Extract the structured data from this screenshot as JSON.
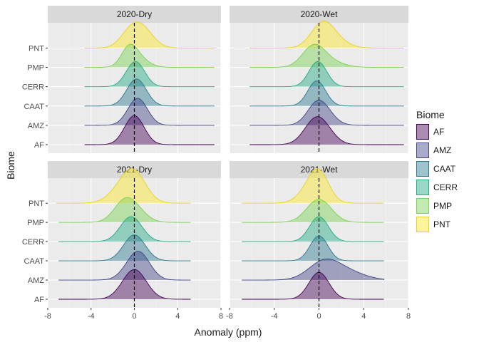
{
  "chart_data": {
    "type": "ridgeline-density",
    "xlabel": "Anomaly (ppm)",
    "ylabel": "Biome",
    "xlim": [
      -8,
      8
    ],
    "x_ticks": [
      -8,
      -4,
      0,
      4,
      8
    ],
    "reference_line_x": 0,
    "legend": {
      "title": "Biome",
      "position": "right"
    },
    "categories": [
      "AF",
      "AMZ",
      "CAAT",
      "CERR",
      "PMP",
      "PNT"
    ],
    "colors": {
      "AF": {
        "fill": "#440154",
        "line": "#440154"
      },
      "AMZ": {
        "fill": "#414487",
        "line": "#414487"
      },
      "CAAT": {
        "fill": "#2A788E",
        "line": "#2A788E"
      },
      "CERR": {
        "fill": "#22A884",
        "line": "#22A884"
      },
      "PMP": {
        "fill": "#7AD151",
        "line": "#7AD151"
      },
      "PNT": {
        "fill": "#FDE725",
        "line": "#E8D21A"
      }
    },
    "fill_alpha": 0.45,
    "panels": [
      {
        "title": "2020-Dry",
        "ridges": [
          {
            "biome": "AF",
            "range": [
              -4.6,
              7.4
            ],
            "height": 1.5,
            "components": [
              [
                0.0,
                0.9,
                1.0
              ]
            ]
          },
          {
            "biome": "AMZ",
            "range": [
              -4.6,
              7.4
            ],
            "height": 1.4,
            "components": [
              [
                0.3,
                0.9,
                1.0
              ]
            ]
          },
          {
            "biome": "CAAT",
            "range": [
              -4.6,
              7.4
            ],
            "height": 1.4,
            "components": [
              [
                0.2,
                0.9,
                1.0
              ]
            ]
          },
          {
            "biome": "CERR",
            "range": [
              -4.6,
              7.4
            ],
            "height": 1.3,
            "components": [
              [
                0.1,
                0.85,
                1.0
              ]
            ]
          },
          {
            "biome": "PMP",
            "range": [
              -4.6,
              7.4
            ],
            "height": 1.2,
            "components": [
              [
                -0.5,
                0.7,
                0.8
              ],
              [
                0.2,
                1.0,
                0.55
              ]
            ]
          },
          {
            "biome": "PNT",
            "range": [
              -4.6,
              7.4
            ],
            "height": 1.35,
            "components": [
              [
                0.5,
                1.1,
                1.0
              ],
              [
                -0.6,
                0.9,
                0.3
              ]
            ]
          }
        ]
      },
      {
        "title": "2020-Wet",
        "ridges": [
          {
            "biome": "AF",
            "range": [
              -6.2,
              7.6
            ],
            "height": 1.45,
            "components": [
              [
                -0.4,
                1.0,
                1.0
              ],
              [
                0.5,
                1.0,
                0.5
              ]
            ]
          },
          {
            "biome": "AMZ",
            "range": [
              -6.2,
              7.6
            ],
            "height": 1.3,
            "components": [
              [
                -0.2,
                0.9,
                0.9
              ],
              [
                0.4,
                1.0,
                0.6
              ]
            ]
          },
          {
            "biome": "CAAT",
            "range": [
              -6.2,
              7.6
            ],
            "height": 1.3,
            "components": [
              [
                -0.2,
                0.8,
                1.0
              ]
            ]
          },
          {
            "biome": "CERR",
            "range": [
              -6.2,
              7.6
            ],
            "height": 1.3,
            "components": [
              [
                -0.1,
                0.8,
                1.0
              ]
            ]
          },
          {
            "biome": "PMP",
            "range": [
              -6.2,
              7.6
            ],
            "height": 1.2,
            "components": [
              [
                -0.5,
                1.0,
                1.0
              ],
              [
                0.8,
                1.3,
                0.3
              ]
            ]
          },
          {
            "biome": "PNT",
            "range": [
              -6.2,
              7.6
            ],
            "height": 1.4,
            "components": [
              [
                0.3,
                1.0,
                1.0
              ],
              [
                1.0,
                1.3,
                0.5
              ]
            ]
          }
        ]
      },
      {
        "title": "2021-Dry",
        "ridges": [
          {
            "biome": "AF",
            "range": [
              -7.0,
              5.2
            ],
            "height": 1.55,
            "components": [
              [
                0.0,
                1.1,
                1.0
              ]
            ]
          },
          {
            "biome": "AMZ",
            "range": [
              -7.0,
              5.2
            ],
            "height": 1.5,
            "components": [
              [
                0.5,
                1.0,
                1.0
              ],
              [
                -0.3,
                1.0,
                0.3
              ]
            ]
          },
          {
            "biome": "CAAT",
            "range": [
              -7.0,
              5.2
            ],
            "height": 1.35,
            "components": [
              [
                0.0,
                1.0,
                1.0
              ]
            ]
          },
          {
            "biome": "CERR",
            "range": [
              -7.0,
              5.2
            ],
            "height": 1.3,
            "components": [
              [
                -0.3,
                1.0,
                1.0
              ]
            ]
          },
          {
            "biome": "PMP",
            "range": [
              -7.0,
              5.2
            ],
            "height": 1.3,
            "components": [
              [
                -0.9,
                1.0,
                1.0
              ],
              [
                0.3,
                1.0,
                0.4
              ]
            ]
          },
          {
            "biome": "PNT",
            "range": [
              -7.2,
              5.2
            ],
            "height": 1.8,
            "components": [
              [
                0.0,
                1.1,
                1.0
              ],
              [
                -1.2,
                1.2,
                0.4
              ]
            ]
          }
        ]
      },
      {
        "title": "2021-Wet",
        "ridges": [
          {
            "biome": "AF",
            "range": [
              -6.9,
              5.8
            ],
            "height": 1.4,
            "components": [
              [
                0.0,
                0.9,
                1.0
              ]
            ]
          },
          {
            "biome": "AMZ",
            "range": [
              -6.9,
              5.8
            ],
            "height": 1.1,
            "components": [
              [
                0.5,
                1.4,
                1.0
              ],
              [
                2.8,
                1.5,
                0.35
              ]
            ]
          },
          {
            "biome": "CAAT",
            "range": [
              -6.9,
              5.8
            ],
            "height": 1.3,
            "components": [
              [
                0.0,
                0.8,
                1.0
              ]
            ]
          },
          {
            "biome": "CERR",
            "range": [
              -6.9,
              5.8
            ],
            "height": 1.3,
            "components": [
              [
                0.0,
                0.85,
                1.0
              ]
            ]
          },
          {
            "biome": "PMP",
            "range": [
              -6.9,
              5.8
            ],
            "height": 1.2,
            "components": [
              [
                0.0,
                1.1,
                1.0
              ]
            ]
          },
          {
            "biome": "PNT",
            "range": [
              -6.9,
              5.8
            ],
            "height": 1.8,
            "components": [
              [
                0.0,
                0.9,
                1.0
              ],
              [
                -1.0,
                1.0,
                0.3
              ]
            ]
          }
        ]
      }
    ]
  }
}
